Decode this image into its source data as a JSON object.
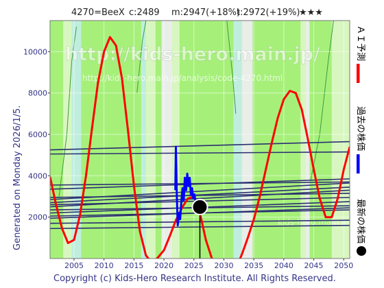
{
  "header": {
    "code_name": "4270=BeeX",
    "current": "c:2489",
    "mid": "m:2947(+18%)",
    "target": "t:2972(+19%)",
    "stars": "★★★"
  },
  "side_label": "Generated on Monday 2026/1/5.",
  "footer": "Copyright (c) Kids-Hero Research Institute. All Rights Reserved.",
  "watermark": {
    "main": "http://kids-hero.main.jp/",
    "sub": "http://kids-hero.main.jp/analysis/code-4270.html",
    "sub2": "kids-hero.main.jp"
  },
  "legend": [
    {
      "name": "ＡＩ予測",
      "color": "#ff0000"
    },
    {
      "name": "過去の株価",
      "color": "#0000ff"
    },
    {
      "name": "最新の株価",
      "color": "#000000"
    }
  ],
  "colors": {
    "light_green": "#a6f07a",
    "pale_green": "#d8f7c0",
    "mint": "#bfeede",
    "grey_band": "#e9eee9",
    "dark_line": "#2a2f70",
    "axis_text": "#333388"
  },
  "chart_data": {
    "type": "line",
    "xlim": [
      2001,
      2051
    ],
    "ylim": [
      0,
      11500
    ],
    "x_ticks": [
      2005,
      2010,
      2015,
      2020,
      2025,
      2030,
      2035,
      2040,
      2045,
      2050
    ],
    "y_ticks": [
      2000,
      4000,
      6000,
      8000,
      10000
    ],
    "series": [
      {
        "name": "ＡＩ予測",
        "color": "#ff0000",
        "points": [
          [
            2001,
            3950
          ],
          [
            2002,
            2600
          ],
          [
            2003,
            1450
          ],
          [
            2004,
            750
          ],
          [
            2005,
            900
          ],
          [
            2006,
            2100
          ],
          [
            2007,
            4000
          ],
          [
            2008,
            6300
          ],
          [
            2009,
            8500
          ],
          [
            2010,
            10000
          ],
          [
            2011,
            10700
          ],
          [
            2012,
            10300
          ],
          [
            2013,
            8700
          ],
          [
            2014,
            6200
          ],
          [
            2015,
            3500
          ],
          [
            2016,
            1300
          ],
          [
            2017,
            150
          ],
          [
            2018,
            -200
          ],
          [
            2019,
            50
          ],
          [
            2020,
            400
          ],
          [
            2021,
            1100
          ],
          [
            2022,
            1850
          ],
          [
            2023,
            2450
          ],
          [
            2024,
            2900
          ],
          [
            2025,
            3000
          ],
          [
            2026,
            2200
          ],
          [
            2027,
            900
          ],
          [
            2028,
            0
          ],
          [
            2029,
            -600
          ],
          [
            2030,
            -900
          ],
          [
            2031,
            -850
          ],
          [
            2032,
            -500
          ],
          [
            2033,
            200
          ],
          [
            2034,
            1000
          ],
          [
            2035,
            1900
          ],
          [
            2036,
            3000
          ],
          [
            2037,
            4300
          ],
          [
            2038,
            5600
          ],
          [
            2039,
            6800
          ],
          [
            2040,
            7700
          ],
          [
            2041,
            8100
          ],
          [
            2042,
            8000
          ],
          [
            2043,
            7200
          ],
          [
            2044,
            5800
          ],
          [
            2045,
            4300
          ],
          [
            2046,
            2900
          ],
          [
            2047,
            2000
          ],
          [
            2048,
            2000
          ],
          [
            2049,
            2900
          ],
          [
            2050,
            4300
          ],
          [
            2051,
            5400
          ]
        ]
      },
      {
        "name": "過去の株価",
        "color": "#0000ff",
        "points": [
          [
            2021.9,
            3300
          ],
          [
            2022.0,
            5400
          ],
          [
            2022.15,
            3000
          ],
          [
            2022.3,
            1600
          ],
          [
            2022.5,
            2200
          ],
          [
            2022.7,
            1900
          ],
          [
            2022.9,
            2700
          ],
          [
            2023.1,
            3400
          ],
          [
            2023.3,
            2800
          ],
          [
            2023.5,
            3900
          ],
          [
            2023.7,
            3300
          ],
          [
            2023.9,
            4100
          ],
          [
            2024.1,
            3500
          ],
          [
            2024.3,
            3900
          ],
          [
            2024.5,
            3100
          ],
          [
            2024.7,
            3400
          ],
          [
            2024.9,
            2900
          ],
          [
            2025.1,
            3100
          ],
          [
            2025.3,
            2700
          ],
          [
            2025.5,
            2600
          ],
          [
            2025.8,
            2450
          ]
        ]
      }
    ],
    "latest": {
      "x": 2026.0,
      "y": 2489,
      "label": "最新の株価"
    }
  }
}
